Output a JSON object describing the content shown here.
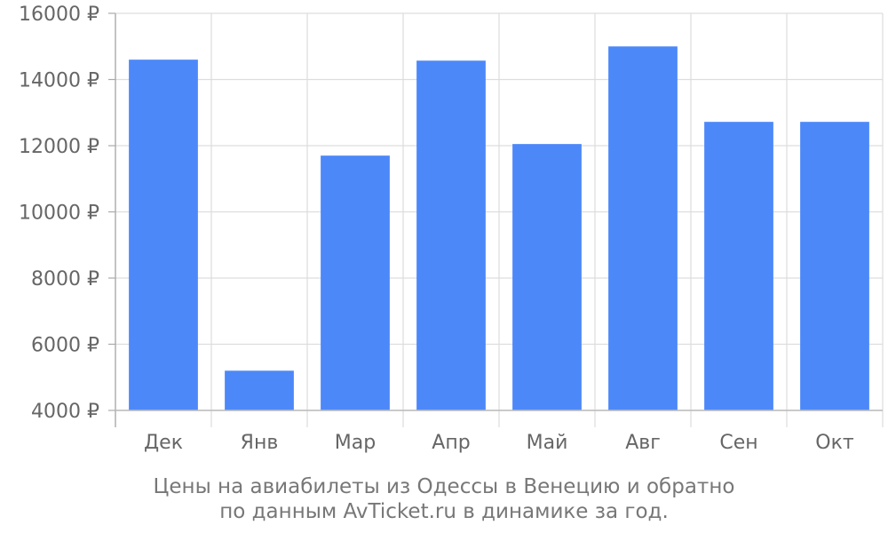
{
  "chart_data": {
    "type": "bar",
    "categories": [
      "Дек",
      "Янв",
      "Мар",
      "Апр",
      "Май",
      "Авг",
      "Сен",
      "Окт"
    ],
    "values": [
      14600,
      5200,
      11700,
      14570,
      12050,
      15000,
      12720,
      12720
    ],
    "ylim": [
      4000,
      16000
    ],
    "yticks": [
      4000,
      6000,
      8000,
      10000,
      12000,
      14000,
      16000
    ],
    "ytick_labels": [
      "4000 ₽",
      "6000 ₽",
      "8000 ₽",
      "10000 ₽",
      "12000 ₽",
      "14000 ₽",
      "16000 ₽"
    ],
    "grid": true,
    "bar_color": "#4d88f9",
    "caption": [
      "Цены на авиабилеты из Одессы в Венецию и обратно",
      "по данным AvTicket.ru в динамике за год."
    ]
  }
}
